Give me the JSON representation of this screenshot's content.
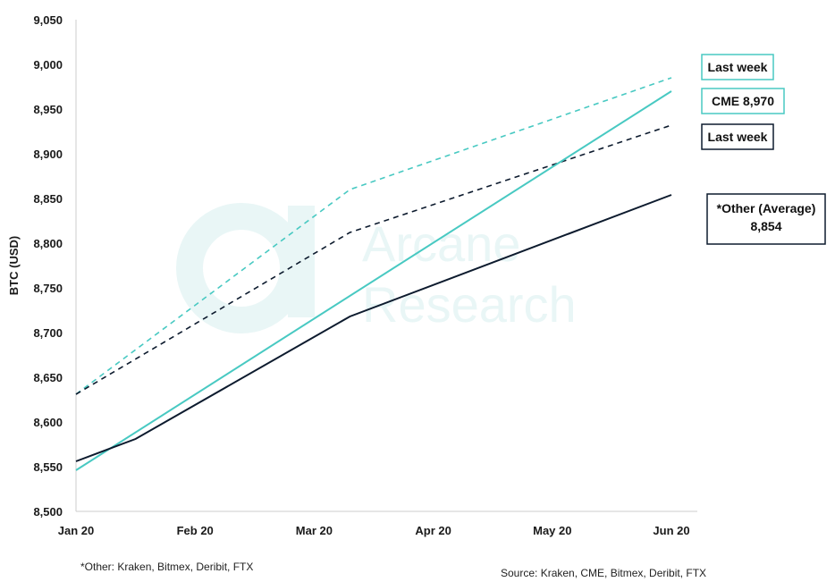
{
  "chart_data": {
    "type": "line",
    "ylabel": "BTC (USD)",
    "ylim": [
      8500,
      9050
    ],
    "yticks": [
      8500,
      8550,
      8600,
      8650,
      8700,
      8750,
      8800,
      8850,
      8900,
      8950,
      9000,
      9050
    ],
    "ytick_labels": [
      "8,500",
      "8,550",
      "8,600",
      "8,650",
      "8,700",
      "8,750",
      "8,800",
      "8,850",
      "8,900",
      "8,950",
      "9,000",
      "9,050"
    ],
    "categories": [
      "Jan 20",
      "Feb 20",
      "Mar 20",
      "Apr 20",
      "May 20",
      "Jun 20"
    ],
    "grid": false,
    "series": [
      {
        "key": "cme_last_week",
        "color": "#48c9c2",
        "dashed": true,
        "points": [
          {
            "x": 0,
            "y": 8631
          },
          {
            "x": 2.3,
            "y": 8860
          },
          {
            "x": 5,
            "y": 8985
          }
        ]
      },
      {
        "key": "other_last_week",
        "color": "#0d1b2e",
        "dashed": true,
        "points": [
          {
            "x": 0,
            "y": 8631
          },
          {
            "x": 2.3,
            "y": 8812
          },
          {
            "x": 5,
            "y": 8932
          }
        ]
      },
      {
        "key": "cme",
        "color": "#48c9c2",
        "dashed": false,
        "points": [
          {
            "x": 0,
            "y": 8546
          },
          {
            "x": 5,
            "y": 8970
          }
        ]
      },
      {
        "key": "other",
        "color": "#0d1b2e",
        "dashed": false,
        "points": [
          {
            "x": 0,
            "y": 8556
          },
          {
            "x": 0.5,
            "y": 8581
          },
          {
            "x": 2.3,
            "y": 8718
          },
          {
            "x": 5,
            "y": 8854
          }
        ]
      }
    ],
    "annotations": [
      {
        "key": "last_week_cme",
        "lines": [
          "Last week"
        ],
        "border": "#48c9c2"
      },
      {
        "key": "cme_current",
        "lines": [
          "CME 8,970"
        ],
        "border": "#48c9c2"
      },
      {
        "key": "last_week_other",
        "lines": [
          "Last week"
        ],
        "border": "#0d1b2e"
      },
      {
        "key": "other_current",
        "lines": [
          "*Other (Average)",
          "8,854"
        ],
        "border": "#0d1b2e"
      }
    ]
  },
  "footnote": "*Other: Kraken, Bitmex, Deribit, FTX",
  "source": "Source: Kraken, CME, Bitmex, Deribit, FTX",
  "watermark": {
    "line1": "Arcane",
    "line2": "Research"
  }
}
